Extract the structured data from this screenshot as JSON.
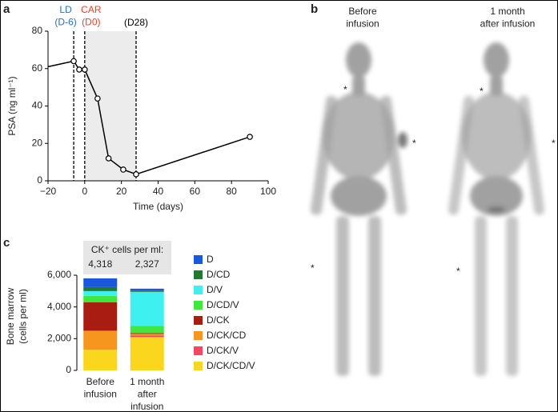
{
  "chart_data": [
    {
      "type": "line",
      "panel_label": "a",
      "x": [
        -20,
        -6,
        -3,
        0,
        7,
        13,
        21,
        28,
        90
      ],
      "values": [
        61,
        64,
        59.5,
        59.5,
        44,
        12,
        6,
        3.5,
        23.5
      ],
      "color": "#000000",
      "xlim": [
        -20,
        100
      ],
      "xticks": [
        {
          "value": -20,
          "label": "−20"
        },
        0,
        20,
        40,
        60,
        80,
        100
      ],
      "ylim": [
        0,
        80
      ],
      "yticks": [
        0,
        20,
        40,
        60,
        80
      ],
      "xlabel": "Time (days)",
      "ylabel": "PSA (ng ml⁻¹)",
      "span": [
        0,
        28
      ],
      "span_color": "#ececec",
      "annotations": [
        {
          "x": -6,
          "text": "LD\n(D-6)",
          "color": "#2a6ebb"
        },
        {
          "x": 0,
          "text": "CAR\n(D0)",
          "color": "#e8412a"
        },
        {
          "x": 28,
          "text": "(D28)",
          "color": "#000000"
        }
      ]
    },
    {
      "type": "bar",
      "stacked": true,
      "panel_label": "c",
      "categories": [
        "Before\ninfusion",
        "1 month\nafter\ninfusion"
      ],
      "ylim": [
        0,
        6000
      ],
      "yticks": [
        0,
        {
          "value": 2000,
          "label": "2,000"
        },
        {
          "value": 4000,
          "label": "4,000"
        },
        {
          "value": 6000,
          "label": "6,000"
        }
      ],
      "ylabel": "Bone marrow\n(cells per ml)",
      "header": {
        "title": "CK⁺ cells per ml:",
        "values": [
          "4,318",
          "2,327"
        ]
      },
      "series": [
        {
          "name": "D",
          "color": "#1a56e0",
          "values": [
            550,
            120
          ]
        },
        {
          "name": "D/CD",
          "color": "#1e7a2e",
          "values": [
            250,
            80
          ]
        },
        {
          "name": "D/V",
          "color": "#3ef0f0",
          "values": [
            300,
            2150
          ]
        },
        {
          "name": "D/CD/V",
          "color": "#3ee83e",
          "values": [
            400,
            450
          ]
        },
        {
          "name": "D/CK",
          "color": "#a81c12",
          "values": [
            1800,
            50
          ]
        },
        {
          "name": "D/CK/CD",
          "color": "#f7961e",
          "values": [
            1200,
            100
          ]
        },
        {
          "name": "D/CK/V",
          "color": "#f04860",
          "values": [
            0,
            100
          ]
        },
        {
          "name": "D/CK/CD/V",
          "color": "#fad61e",
          "values": [
            1300,
            2100
          ]
        }
      ]
    }
  ],
  "panel_b": {
    "label": "b",
    "titles": [
      "Before\ninfusion",
      "1 month\nafter infusion"
    ]
  }
}
